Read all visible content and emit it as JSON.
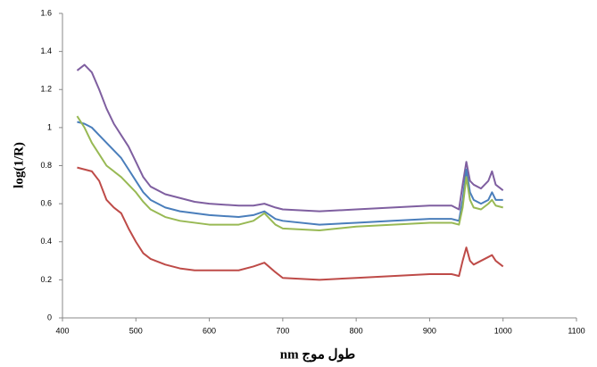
{
  "chart_data": {
    "type": "line",
    "x_label": "طول موج nm",
    "y_label": "log(1/R)",
    "x": [
      420,
      430,
      440,
      450,
      460,
      470,
      480,
      490,
      500,
      510,
      520,
      540,
      560,
      580,
      600,
      640,
      660,
      675,
      690,
      700,
      750,
      800,
      850,
      900,
      930,
      940,
      945,
      950,
      955,
      960,
      970,
      980,
      985,
      990,
      1000
    ],
    "series": [
      {
        "color": "#7f5fa0",
        "values": [
          1.3,
          1.33,
          1.29,
          1.2,
          1.1,
          1.02,
          0.96,
          0.9,
          0.82,
          0.74,
          0.69,
          0.65,
          0.63,
          0.61,
          0.6,
          0.59,
          0.59,
          0.6,
          0.58,
          0.57,
          0.56,
          0.57,
          0.58,
          0.59,
          0.59,
          0.57,
          0.7,
          0.82,
          0.72,
          0.7,
          0.68,
          0.72,
          0.77,
          0.7,
          0.67
        ]
      },
      {
        "color": "#4a7ebb",
        "values": [
          1.03,
          1.02,
          1.0,
          0.96,
          0.92,
          0.88,
          0.84,
          0.78,
          0.72,
          0.66,
          0.62,
          0.58,
          0.56,
          0.55,
          0.54,
          0.53,
          0.54,
          0.56,
          0.52,
          0.51,
          0.49,
          0.5,
          0.51,
          0.52,
          0.52,
          0.51,
          0.62,
          0.78,
          0.66,
          0.62,
          0.6,
          0.62,
          0.66,
          0.62,
          0.62
        ]
      },
      {
        "color": "#98b954",
        "values": [
          1.06,
          1.0,
          0.92,
          0.86,
          0.8,
          0.77,
          0.74,
          0.7,
          0.66,
          0.61,
          0.57,
          0.53,
          0.51,
          0.5,
          0.49,
          0.49,
          0.51,
          0.55,
          0.49,
          0.47,
          0.46,
          0.48,
          0.49,
          0.5,
          0.5,
          0.49,
          0.58,
          0.74,
          0.62,
          0.58,
          0.57,
          0.6,
          0.62,
          0.59,
          0.58
        ]
      },
      {
        "color": "#be4b48",
        "values": [
          0.79,
          0.78,
          0.77,
          0.72,
          0.62,
          0.58,
          0.55,
          0.47,
          0.4,
          0.34,
          0.31,
          0.28,
          0.26,
          0.25,
          0.25,
          0.25,
          0.27,
          0.29,
          0.24,
          0.21,
          0.2,
          0.21,
          0.22,
          0.23,
          0.23,
          0.22,
          0.3,
          0.37,
          0.3,
          0.28,
          0.3,
          0.32,
          0.33,
          0.3,
          0.27
        ]
      }
    ],
    "xlim": [
      400,
      1100
    ],
    "xticks": [
      400,
      500,
      600,
      700,
      800,
      900,
      1000,
      1100
    ],
    "ylim": [
      0,
      1.6
    ],
    "yticks": [
      0,
      0.2,
      0.4,
      0.6,
      0.8,
      1,
      1.2,
      1.4,
      1.6
    ],
    "grid": false
  }
}
